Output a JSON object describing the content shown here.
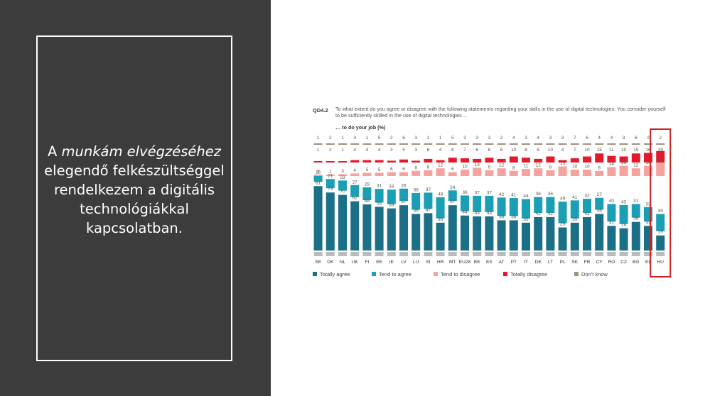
{
  "slide": {
    "text_part1": "A ",
    "text_italic": "munkám elvégzéséhez",
    "text_part2": " elegendő felkészültséggel rendelkezem a digitális technológiákkal kapcsolatban."
  },
  "chart_data": {
    "type": "bar",
    "stacked": true,
    "percent_stacked": true,
    "question_code": "QD4.2",
    "title": "To what extent do you agree or disagree with the following statements regarding your skills in the use of digital technologies: You consider yourself to be sufficiently skilled in the use of digital technologies…",
    "subtitle": "… to do your job (%)",
    "categories": [
      "SE",
      "DK",
      "NL",
      "UK",
      "FI",
      "EE",
      "IE",
      "LV",
      "LU",
      "SI",
      "HR",
      "MT",
      "EU28",
      "BE",
      "ES",
      "AT",
      "PT",
      "IT",
      "DE",
      "LT",
      "PL",
      "SK",
      "FR",
      "CY",
      "RO",
      "CZ",
      "BG",
      "EL",
      "HU"
    ],
    "series": [
      {
        "name": "Totally agree",
        "color": "#1b6f87",
        "values": [
          81,
          73,
          70,
          62,
          58,
          55,
          53,
          57,
          46,
          47,
          35,
          57,
          44,
          43,
          43,
          38,
          38,
          35,
          42,
          42,
          29,
          35,
          42,
          46,
          31,
          28,
          36,
          31,
          19
        ]
      },
      {
        "name": "Tend to agree",
        "color": "#1a9fb4",
        "values": [
          15,
          21,
          23,
          27,
          29,
          31,
          33,
          28,
          38,
          37,
          48,
          24,
          36,
          37,
          37,
          42,
          41,
          44,
          36,
          36,
          49,
          41,
          32,
          27,
          40,
          43,
          31,
          33,
          39
        ]
      },
      {
        "name": "Tend to disagree",
        "color": "#f4a39e",
        "values": [
          1,
          1,
          3,
          4,
          5,
          5,
          6,
          6,
          8,
          9,
          12,
          6,
          10,
          13,
          9,
          12,
          8,
          11,
          12,
          9,
          15,
          10,
          10,
          8,
          14,
          16,
          12,
          16,
          21
        ]
      },
      {
        "name": "Totally disagree",
        "color": "#e31a2c",
        "values": [
          1,
          2,
          1,
          4,
          4,
          4,
          3,
          5,
          3,
          6,
          4,
          8,
          7,
          6,
          8,
          6,
          10,
          8,
          6,
          10,
          4,
          7,
          10,
          15,
          11,
          10,
          15,
          16,
          19
        ]
      },
      {
        "name": "Don't know",
        "color": "#a09080",
        "values": [
          1,
          2,
          1,
          3,
          1,
          5,
          2,
          6,
          3,
          1,
          1,
          5,
          3,
          3,
          3,
          2,
          4,
          3,
          4,
          3,
          3,
          7,
          6,
          4,
          4,
          3,
          6,
          2,
          2
        ]
      }
    ],
    "highlighted_category": "HU",
    "highlight_color": "#cc1f1f",
    "legend_position": "bottom",
    "grid": false
  }
}
